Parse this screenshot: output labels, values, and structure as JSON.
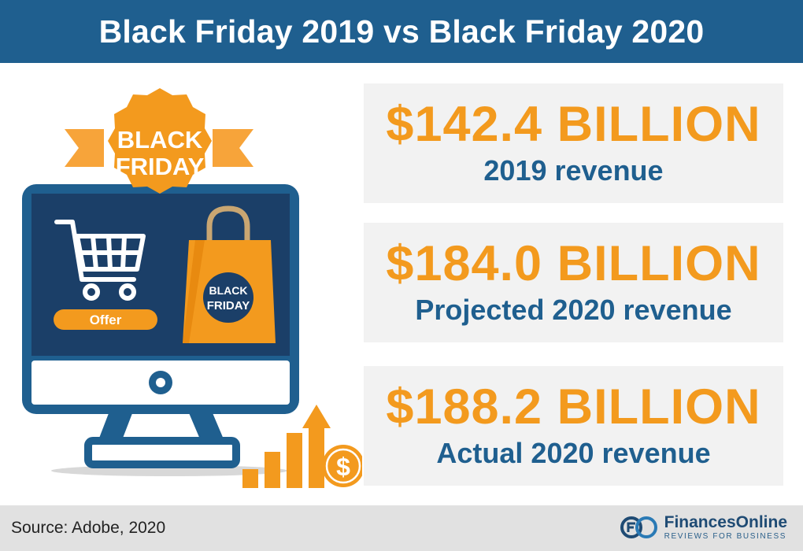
{
  "header": {
    "title": "Black Friday 2019 vs Black Friday 2020"
  },
  "illustration": {
    "badge_line1": "BLACK",
    "badge_line2": "FRIDAY",
    "bag_line1": "BLACK",
    "bag_line2": "FRIDAY",
    "offer_label": "Offer",
    "coin_symbol": "$"
  },
  "stats": [
    {
      "value": "$142.4 BILLION",
      "label": "2019 revenue"
    },
    {
      "value": "$184.0 BILLION",
      "label": "Projected 2020 revenue"
    },
    {
      "value": "$188.2 BILLION",
      "label": "Actual 2020 revenue"
    }
  ],
  "footer": {
    "source": "Source: Adobe, 2020",
    "brand_name": "FinancesOnline",
    "brand_tagline": "REVIEWS FOR BUSINESS"
  },
  "colors": {
    "primary_blue": "#1f5f8f",
    "accent_orange": "#f39a1e",
    "box_gray": "#f2f2f2",
    "footer_gray": "#e1e1e1"
  }
}
